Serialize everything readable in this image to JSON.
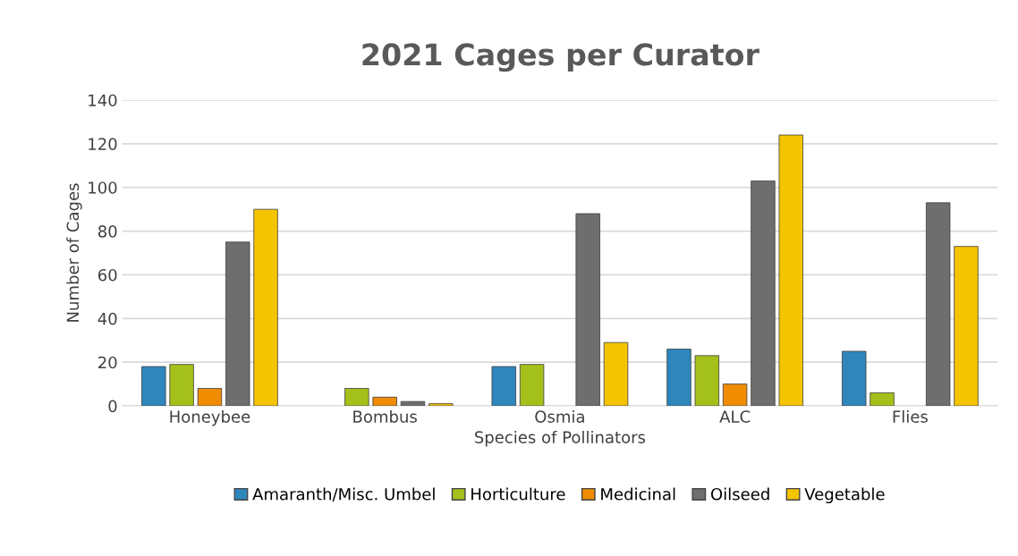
{
  "chart_data": {
    "type": "bar",
    "title": "2021 Cages per Curator",
    "xlabel": "Species of Pollinators",
    "ylabel": "Number of Cages",
    "categories": [
      "Honeybee",
      "Bombus",
      "Osmia",
      "ALC",
      "Flies"
    ],
    "series": [
      {
        "name": "Amaranth/Misc. Umbel",
        "color": "#2e86bd",
        "values": [
          18,
          null,
          18,
          26,
          25
        ]
      },
      {
        "name": "Horticulture",
        "color": "#a4c01a",
        "values": [
          19,
          8,
          19,
          23,
          6
        ]
      },
      {
        "name": "Medicinal",
        "color": "#f08c00",
        "values": [
          8,
          4,
          null,
          10,
          null
        ]
      },
      {
        "name": "Oilseed",
        "color": "#6e6e6e",
        "values": [
          75,
          2,
          88,
          103,
          93
        ]
      },
      {
        "name": "Vegetable",
        "color": "#f5c400",
        "values": [
          90,
          1,
          29,
          124,
          73
        ]
      }
    ],
    "ylim": [
      0,
      140
    ],
    "yticks": [
      0,
      20,
      40,
      60,
      80,
      100,
      120,
      140
    ],
    "grid": "y",
    "legend": "bottom"
  }
}
